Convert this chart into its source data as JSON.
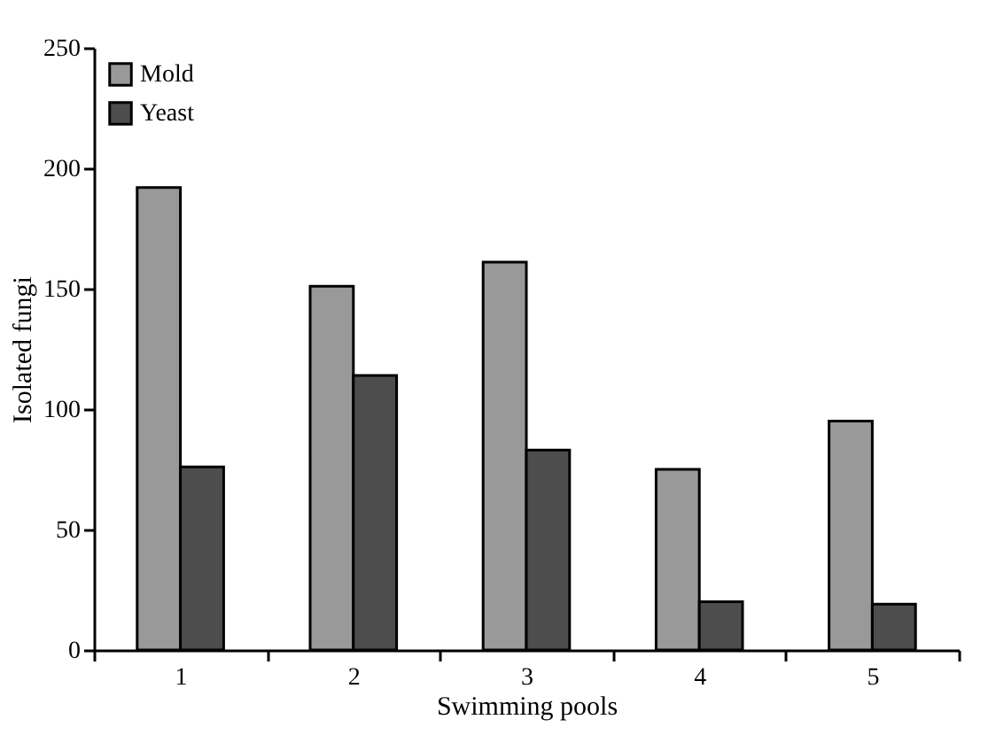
{
  "chart_data": {
    "type": "bar",
    "xlabel": "Swimming pools",
    "ylabel": "Isolated fungi",
    "categories": [
      "1",
      "2",
      "3",
      "4",
      "5"
    ],
    "series": [
      {
        "name": "Mold",
        "color": "#999999",
        "values": [
          192,
          151,
          161,
          75,
          95
        ]
      },
      {
        "name": "Yeast",
        "color": "#4d4d4d",
        "values": [
          76,
          114,
          83,
          20,
          19
        ]
      }
    ],
    "ylim": [
      0,
      250
    ],
    "yticks": [
      0,
      50,
      100,
      150,
      200,
      250
    ],
    "grid": false,
    "legend": "top left"
  }
}
